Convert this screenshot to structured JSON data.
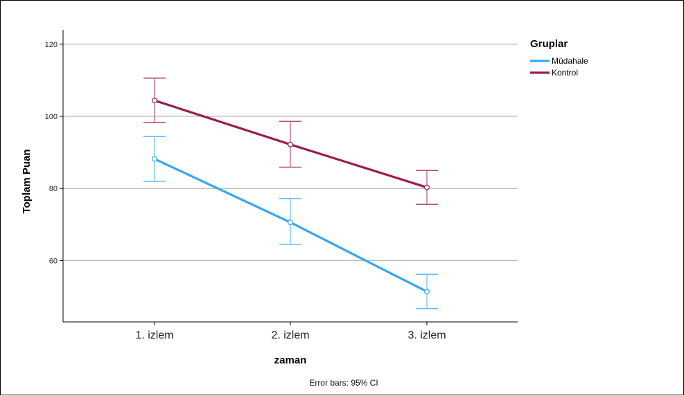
{
  "chart_data": {
    "type": "line",
    "title": "",
    "xlabel": "zaman",
    "ylabel": "Toplam Puan",
    "categories": [
      "1. izlem",
      "2. izlem",
      "3. izlem"
    ],
    "ylim": [
      43,
      124
    ],
    "yticks": [
      60,
      80,
      100,
      120
    ],
    "ytick_labels": [
      "60",
      "80",
      "100",
      "120"
    ],
    "grid": "horizontal",
    "legend": {
      "title": "Gruplar",
      "placement": "top-right"
    },
    "footnote": "Error bars: 95% CI",
    "series": [
      {
        "name": "Müdahale",
        "color": "#33a9f2",
        "values": [
          88.2,
          70.6,
          51.4
        ],
        "ci_low": [
          82.0,
          64.5,
          46.7
        ],
        "ci_high": [
          94.4,
          77.2,
          56.2
        ]
      },
      {
        "name": "Kontrol",
        "color": "#9c1b4e",
        "values": [
          104.4,
          92.2,
          80.3
        ],
        "ci_low": [
          98.3,
          85.9,
          75.6
        ],
        "ci_high": [
          110.6,
          98.6,
          85.0
        ]
      }
    ]
  }
}
